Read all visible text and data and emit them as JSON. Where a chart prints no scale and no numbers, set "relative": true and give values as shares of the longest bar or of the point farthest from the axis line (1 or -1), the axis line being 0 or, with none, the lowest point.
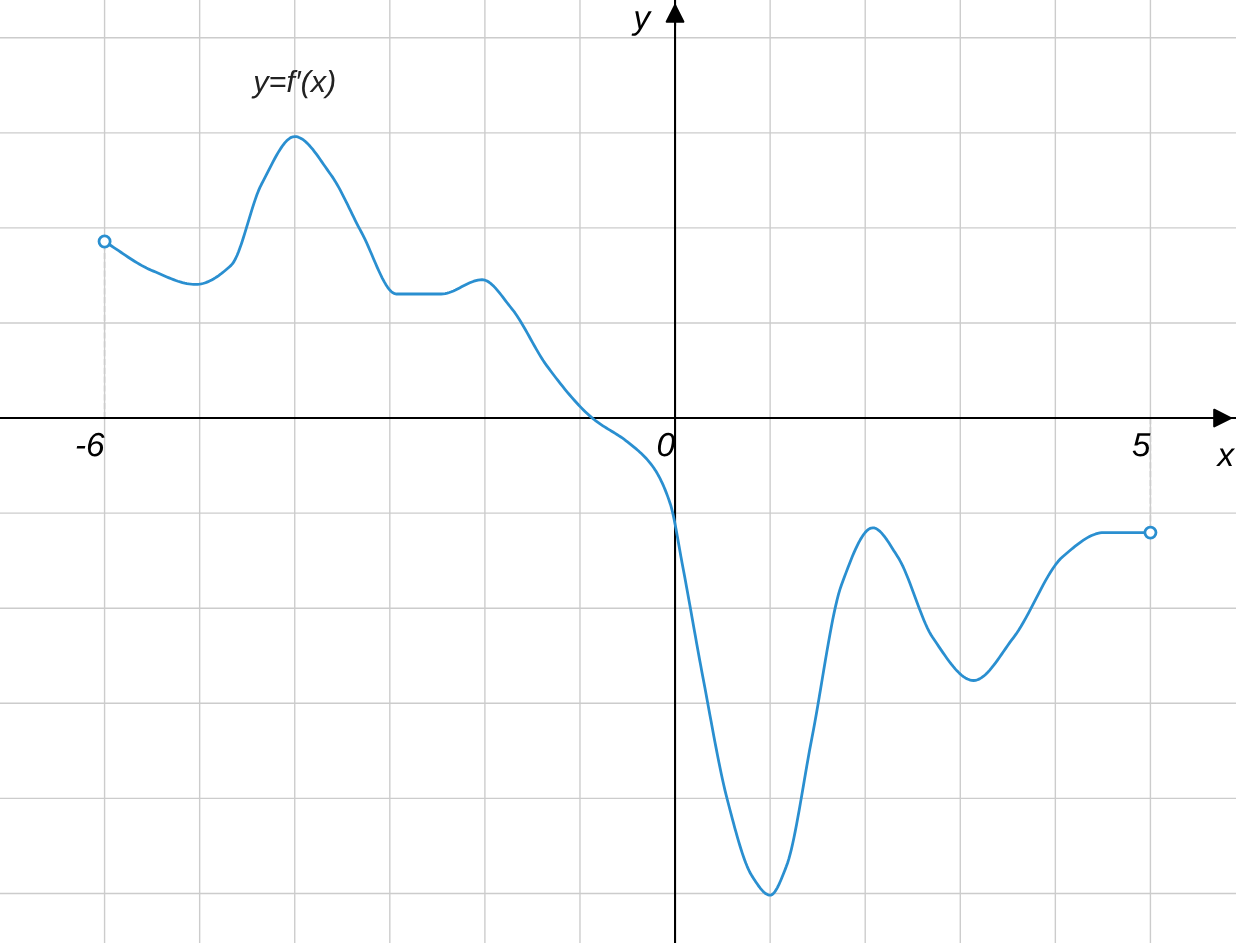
{
  "chart_data": {
    "type": "line",
    "relative": true,
    "xlabel": "x",
    "ylabel": "y",
    "xlim": [
      -7.1,
      5.9
    ],
    "xticks": [
      -6,
      {
        "value": -5,
        "label": null
      },
      {
        "value": -4,
        "label": null
      },
      {
        "value": -3,
        "label": null
      },
      {
        "value": -2,
        "label": null
      },
      {
        "value": -1,
        "label": null
      },
      0,
      {
        "value": 1,
        "label": null
      },
      {
        "value": 2,
        "label": null
      },
      {
        "value": 3,
        "label": null
      },
      {
        "value": 4,
        "label": null
      },
      5
    ],
    "grid": true,
    "line_style": "solid",
    "ref_lines": [
      {
        "axis": "x",
        "value": -6,
        "color": "#cccccc",
        "line_style": "dashed"
      },
      {
        "axis": "x",
        "value": 5,
        "color": "#cccccc",
        "line_style": "dashed"
      }
    ],
    "series": [
      {
        "name": "y=f′(x)",
        "color": "#2a8fd0",
        "x": [
          -6,
          -5.51,
          -5.04,
          -4.67,
          -4.35,
          -4.0,
          -3.62,
          -3.3,
          -2.93,
          -2.46,
          -2.03,
          -1.72,
          -1.35,
          -0.87,
          -0.5,
          -0.24,
          -0.05,
          0.08,
          0.29,
          0.55,
          0.81,
          1.0,
          1.17,
          1.44,
          1.75,
          2.08,
          2.34,
          2.71,
          3.14,
          3.56,
          4.08,
          4.51,
          5.0
        ],
        "values": [
          0.37,
          0.31,
          0.28,
          0.32,
          0.49,
          0.59,
          0.51,
          0.39,
          0.26,
          0.26,
          0.29,
          0.23,
          0.11,
          0,
          -0.05,
          -0.1,
          -0.18,
          -0.31,
          -0.54,
          -0.8,
          -0.96,
          -1.0,
          -0.94,
          -0.67,
          -0.35,
          -0.23,
          -0.29,
          -0.46,
          -0.55,
          -0.46,
          -0.29,
          -0.24,
          -0.24
        ]
      },
      {
        "type": "scatter",
        "color": "#2a8fd0",
        "x": [
          -6,
          5
        ],
        "values": [
          0.37,
          -0.24
        ]
      }
    ]
  }
}
